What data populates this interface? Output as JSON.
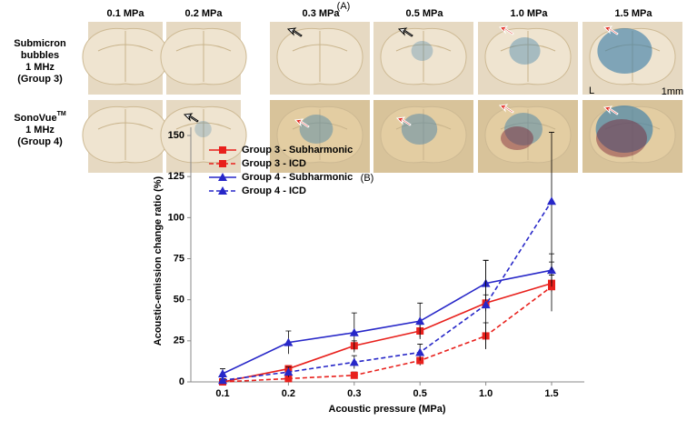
{
  "panel_a": {
    "label": "(A)",
    "columns": [
      "0.1 MPa",
      "0.2 MPa",
      "0.3 MPa",
      "0.5 MPa",
      "1.0 MPa",
      "1.5 MPa"
    ],
    "rows": [
      {
        "name": "Submicron",
        "sup": "",
        "lines": [
          "bubbles",
          "1 MHz",
          "(Group 3)"
        ]
      },
      {
        "name": "SonoVue",
        "sup": "TM",
        "lines": [
          "1 MHz",
          "(Group 4)"
        ]
      }
    ],
    "annotations": [
      "L",
      "1mm"
    ]
  },
  "chart_data": {
    "type": "line",
    "title": "(B)",
    "x_label": "Acoustic pressure (MPa)",
    "y_label": "Acoustic-emission change ratio (%)",
    "categories": [
      "0.1",
      "0.2",
      "0.3",
      "0.5",
      "1.0",
      "1.5"
    ],
    "ylim": [
      0,
      155
    ],
    "yticks": [
      0,
      25,
      50,
      75,
      100,
      125,
      150
    ],
    "legend": "top-left",
    "series": [
      {
        "name": "Group 3 - Subharmonic",
        "color": "#e8201c",
        "line_style": "solid",
        "marker": "square",
        "values": [
          0,
          8,
          22,
          31,
          48,
          60
        ],
        "errors": [
          1,
          2,
          3,
          4,
          5,
          5
        ]
      },
      {
        "name": "Group 3 - ICD",
        "color": "#e8201c",
        "line_style": "dashed",
        "marker": "square",
        "values": [
          0,
          2,
          4,
          13,
          28,
          58
        ],
        "errors": [
          1,
          1,
          2,
          3,
          8,
          15
        ]
      },
      {
        "name": "Group 4 - Subharmonic",
        "color": "#2727c8",
        "line_style": "solid",
        "marker": "triangle",
        "values": [
          5,
          24,
          30,
          37,
          60,
          68
        ],
        "errors": [
          3,
          7,
          12,
          11,
          14,
          10
        ]
      },
      {
        "name": "Group 4 - ICD",
        "color": "#2727c8",
        "line_style": "dashed",
        "marker": "triangle",
        "values": [
          1,
          6,
          12,
          18,
          47,
          110
        ],
        "errors": [
          1,
          3,
          4,
          5,
          27,
          42
        ]
      }
    ]
  }
}
